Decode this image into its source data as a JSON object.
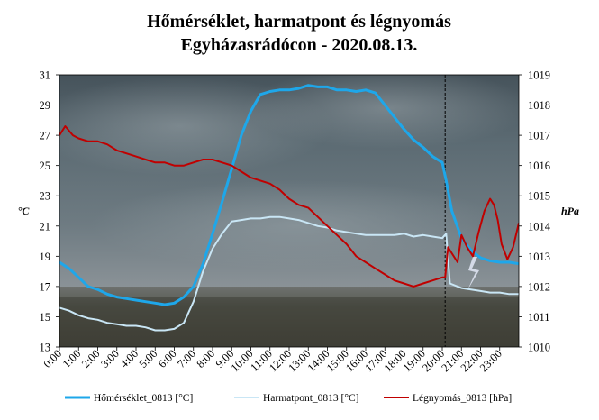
{
  "chart_data": {
    "type": "line",
    "title": "Hőmérséklet, harmatpont és légnyomás",
    "subtitle": "Egyházasrádócon - 2020.08.13.",
    "y_left_label": "°C",
    "y_right_label": "hPa",
    "y_left_lim": [
      13,
      31
    ],
    "y_left_ticks": [
      "13",
      "15",
      "17",
      "19",
      "21",
      "23",
      "25",
      "27",
      "29",
      "31"
    ],
    "y_right_lim": [
      1010,
      1019
    ],
    "y_right_ticks": [
      "1010",
      "1011",
      "1012",
      "1013",
      "1014",
      "1015",
      "1016",
      "1017",
      "1018",
      "1019"
    ],
    "x_lim": [
      0,
      24
    ],
    "x_tick_labels": [
      "0:00",
      "1:00",
      "2:00",
      "3:00",
      "4:00",
      "5:00",
      "6:00",
      "7:00",
      "8:00",
      "9:00",
      "10:00",
      "11:00",
      "12:00",
      "13:00",
      "14:00",
      "15:00",
      "16:00",
      "17:00",
      "18:00",
      "19:00",
      "20:00",
      "21:00",
      "22:00",
      "23:00"
    ],
    "vline_x": 20.15,
    "background": "photo of stormy sky over a field with lightning",
    "legend_position": "bottom",
    "series": [
      {
        "name": "Hőmérséklet_0813 [°C]",
        "axis": "left",
        "color": "#1ea7ea",
        "x": [
          0,
          0.5,
          1,
          1.5,
          2,
          2.5,
          3,
          3.5,
          4,
          4.5,
          5,
          5.5,
          6,
          6.5,
          7,
          7.5,
          8,
          8.5,
          9,
          9.5,
          10,
          10.5,
          11,
          11.5,
          12,
          12.5,
          13,
          13.5,
          14,
          14.5,
          15,
          15.5,
          16,
          16.5,
          17,
          17.5,
          18,
          18.5,
          19,
          19.5,
          20,
          20.2,
          20.5,
          21,
          21.5,
          22,
          22.5,
          23,
          23.5,
          24
        ],
        "y": [
          18.6,
          18.2,
          17.6,
          17.0,
          16.8,
          16.5,
          16.3,
          16.2,
          16.1,
          16.0,
          15.9,
          15.8,
          15.9,
          16.3,
          17.0,
          18.5,
          20.5,
          22.6,
          24.8,
          27.0,
          28.6,
          29.7,
          29.9,
          30.0,
          30.0,
          30.1,
          30.3,
          30.2,
          30.2,
          30.0,
          30.0,
          29.9,
          30.0,
          29.8,
          29.0,
          28.2,
          27.4,
          26.7,
          26.2,
          25.6,
          25.2,
          24.0,
          22.0,
          20.2,
          19.4,
          18.9,
          18.7,
          18.6,
          18.6,
          18.5
        ]
      },
      {
        "name": "Harmatpont_0813 [°C]",
        "axis": "left",
        "color": "#c9e6f5",
        "x": [
          0,
          0.5,
          1,
          1.5,
          2,
          2.5,
          3,
          3.5,
          4,
          4.5,
          5,
          5.5,
          6,
          6.5,
          7,
          7.5,
          8,
          8.5,
          9,
          9.5,
          10,
          10.5,
          11,
          11.5,
          12,
          12.5,
          13,
          13.5,
          14,
          14.5,
          15,
          15.5,
          16,
          16.5,
          17,
          17.5,
          18,
          18.5,
          19,
          19.5,
          20,
          20.2,
          20.4,
          21,
          21.5,
          22,
          22.5,
          23,
          23.5,
          24
        ],
        "y": [
          15.6,
          15.4,
          15.1,
          14.9,
          14.8,
          14.6,
          14.5,
          14.4,
          14.4,
          14.3,
          14.1,
          14.1,
          14.2,
          14.6,
          16.0,
          18.0,
          19.5,
          20.5,
          21.3,
          21.4,
          21.5,
          21.5,
          21.6,
          21.6,
          21.5,
          21.4,
          21.2,
          21.0,
          20.9,
          20.7,
          20.6,
          20.5,
          20.4,
          20.4,
          20.4,
          20.4,
          20.5,
          20.3,
          20.4,
          20.3,
          20.2,
          20.5,
          17.2,
          16.9,
          16.8,
          16.7,
          16.6,
          16.6,
          16.5,
          16.5
        ]
      },
      {
        "name": "Légnyomás_0813 [hPa]",
        "axis": "right",
        "color": "#c00000",
        "x": [
          0,
          0.3,
          0.7,
          1,
          1.5,
          2,
          2.5,
          3,
          3.5,
          4,
          4.5,
          5,
          5.5,
          6,
          6.5,
          7,
          7.5,
          8,
          8.5,
          9,
          9.5,
          10,
          10.5,
          11,
          11.5,
          12,
          12.5,
          13,
          13.5,
          14,
          14.5,
          15,
          15.5,
          16,
          16.5,
          17,
          17.5,
          18,
          18.5,
          19,
          19.5,
          20,
          20.15,
          20.3,
          20.5,
          20.8,
          21,
          21.3,
          21.6,
          21.9,
          22.2,
          22.5,
          22.7,
          22.9,
          23.1,
          23.4,
          23.7,
          24
        ],
        "y": [
          1017.0,
          1017.3,
          1017.0,
          1016.9,
          1016.8,
          1016.8,
          1016.7,
          1016.5,
          1016.4,
          1016.3,
          1016.2,
          1016.1,
          1016.1,
          1016.0,
          1016.0,
          1016.1,
          1016.2,
          1016.2,
          1016.1,
          1016.0,
          1015.8,
          1015.6,
          1015.5,
          1015.4,
          1015.2,
          1014.9,
          1014.7,
          1014.6,
          1014.3,
          1014.0,
          1013.7,
          1013.4,
          1013.0,
          1012.8,
          1012.6,
          1012.4,
          1012.2,
          1012.1,
          1012.0,
          1012.1,
          1012.2,
          1012.3,
          1012.3,
          1013.3,
          1013.1,
          1012.8,
          1013.7,
          1013.3,
          1013.0,
          1013.8,
          1014.5,
          1014.9,
          1014.7,
          1014.2,
          1013.4,
          1012.9,
          1013.3,
          1014.1
        ]
      }
    ]
  }
}
